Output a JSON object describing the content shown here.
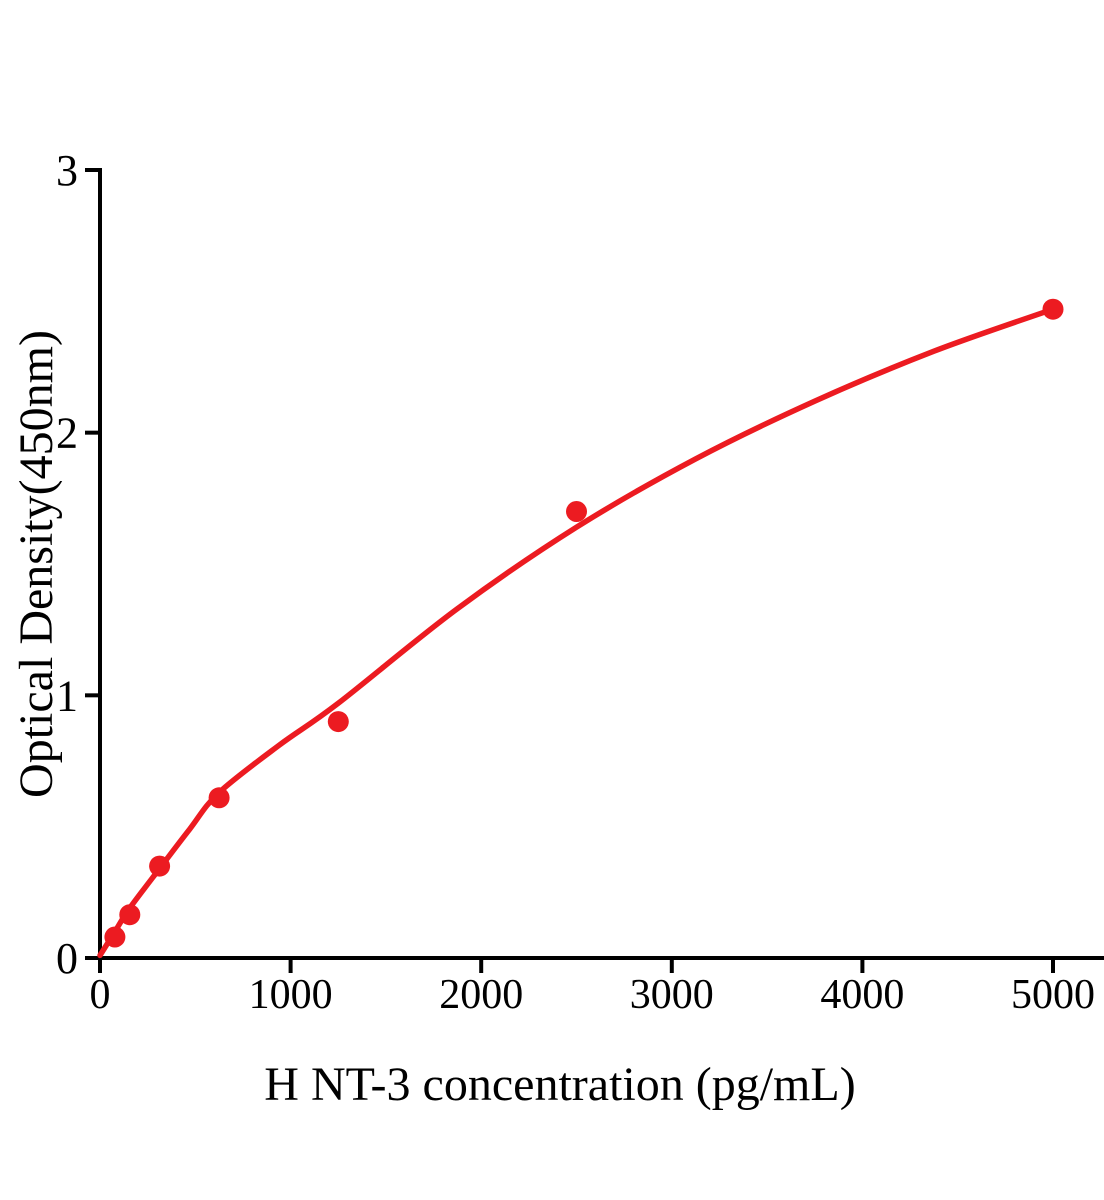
{
  "chart_data": {
    "type": "scatter",
    "title": "",
    "xlabel": "H NT-3 concentration (pg/mL)",
    "ylabel": "Optical Density(450nm)",
    "xlim": [
      0,
      5000
    ],
    "ylim": [
      0,
      3
    ],
    "x_ticks": [
      0,
      1000,
      2000,
      3000,
      4000,
      5000
    ],
    "y_ticks": [
      0,
      1,
      2,
      3
    ],
    "grid": false,
    "legend": "none",
    "series": [
      {
        "marker": "circle",
        "color": "#EC1B21",
        "points": [
          {
            "x": 78.125,
            "y": 0.08
          },
          {
            "x": 156.25,
            "y": 0.165
          },
          {
            "x": 312.5,
            "y": 0.35
          },
          {
            "x": 625,
            "y": 0.61
          },
          {
            "x": 1250,
            "y": 0.9
          },
          {
            "x": 2500,
            "y": 1.7
          },
          {
            "x": 5000,
            "y": 2.47
          }
        ],
        "fit_curve": [
          [
            0,
            0.01
          ],
          [
            78,
            0.1
          ],
          [
            156,
            0.19
          ],
          [
            312,
            0.34
          ],
          [
            470,
            0.49
          ],
          [
            625,
            0.63
          ],
          [
            940,
            0.81
          ],
          [
            1250,
            0.97
          ],
          [
            1875,
            1.33
          ],
          [
            2500,
            1.64
          ],
          [
            3125,
            1.9
          ],
          [
            3750,
            2.12
          ],
          [
            4375,
            2.31
          ],
          [
            5000,
            2.47
          ]
        ]
      }
    ]
  },
  "colors": {
    "curve": "#EC1B21",
    "axis": "#000000",
    "background": "#FFFFFF"
  }
}
